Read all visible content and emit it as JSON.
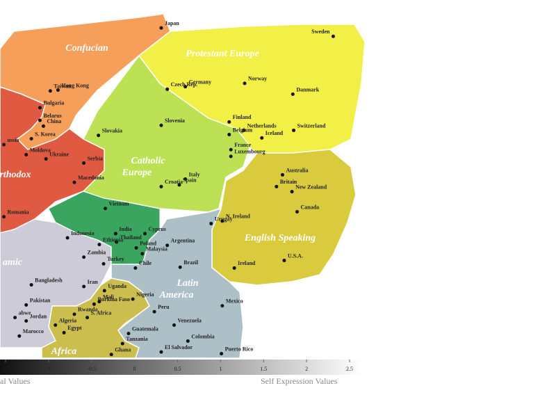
{
  "chart_data": {
    "type": "scatter",
    "xlim": [
      -1.5,
      2.5
    ],
    "ylim": [
      -2.2,
      2.0
    ],
    "xticks": [
      -1.5,
      -1,
      -0.5,
      0,
      0.5,
      1,
      1.5,
      2,
      2.5
    ],
    "xlabel_left": "al Values",
    "xlabel_right": "Self Expression Values",
    "point_color": "#111111",
    "regions": [
      {
        "name": "Confucian",
        "color": "#f59a52"
      },
      {
        "name": "Protestant Europe",
        "color": "#f2ef3e"
      },
      {
        "name": "Catholic Europe",
        "color": "#b9e04c"
      },
      {
        "name": "English Speaking",
        "color": "#d7c834"
      },
      {
        "name": "rthodox",
        "color": "#df5238"
      },
      {
        "name": "amic",
        "color": "#cbc9d5"
      },
      {
        "name": "Africa",
        "color": "#c9bb45"
      },
      {
        "name": "Latin America",
        "color": "#a9bdc5"
      }
    ],
    "labels": [
      "Japan",
      "Sweden",
      "Hong Kong",
      "Taiwan",
      "Norway",
      "Germany",
      "Czech Rep.",
      "Danmark",
      "Bulgaria",
      "Belarus",
      "China",
      "Slovenia",
      "Slovakia",
      "Finland",
      "Netherlands",
      "Switzerland",
      "Belgium",
      "Iceland",
      "S. Korea",
      "ussia",
      "France",
      "Luxembourg",
      "Moldova",
      "Ukraine",
      "Serbia",
      "Australia",
      "Italy",
      "Britain",
      "Croatia",
      "Spain",
      "New Zealand",
      "Macedonia",
      "Canada",
      "Vietnam",
      "Romania",
      "N. Ireland",
      "Urugay",
      "India",
      "Cyprus",
      "Indonesia",
      "Thailand",
      "Ethiopia",
      "Argentina",
      "Poland",
      "Zambia",
      "Malaysia",
      "Turkey",
      "Brazil",
      "Chile",
      "U.S.A.",
      "Ireland",
      "Bangladesh",
      "Iran",
      "Uganda",
      "Nigeria",
      "Mexico",
      "Pakistan",
      "Burkina Faso",
      "Mali",
      "Peru",
      "Rwanda",
      "S. Africa",
      "abwe",
      "Jordan",
      "Venezuela",
      "Algeria",
      "Egypt",
      "Guatemala",
      "Marocco",
      "Colombia",
      "Tanzania",
      "Ghana",
      "El Salvador",
      "Puerto Rico"
    ],
    "x": [
      0.31,
      2.31,
      -0.89,
      -0.98,
      1.28,
      0.59,
      0.38,
      1.84,
      -1.1,
      -1.1,
      -1.06,
      0.31,
      -0.42,
      1.1,
      1.27,
      1.85,
      1.1,
      1.48,
      -1.2,
      -1.52,
      1.12,
      1.12,
      -1.26,
      -1.03,
      -0.59,
      1.72,
      0.59,
      1.65,
      0.31,
      0.52,
      1.83,
      -0.7,
      1.89,
      -0.34,
      -1.52,
      1.02,
      0.89,
      -0.22,
      0.12,
      -0.78,
      -0.21,
      -0.41,
      0.38,
      0.02,
      -0.59,
      0.09,
      -0.36,
      0.53,
      0.01,
      1.74,
      1.16,
      -1.2,
      -0.59,
      -0.35,
      -0.02,
      1.02,
      -1.26,
      -0.47,
      -0.41,
      0.23,
      -0.7,
      -0.55,
      -1.39,
      -1.26,
      0.46,
      -0.92,
      -0.82,
      -0.07,
      -1.34,
      0.62,
      -0.14,
      -0.27,
      0.31,
      1.01
    ],
    "y": [
      1.75,
      1.65,
      1.01,
      1.0,
      1.09,
      1.05,
      1.02,
      0.96,
      0.8,
      0.65,
      0.58,
      0.59,
      0.47,
      0.63,
      0.53,
      0.53,
      0.48,
      0.44,
      0.43,
      0.36,
      0.3,
      0.22,
      0.24,
      0.19,
      0.14,
      0.0,
      -0.05,
      -0.14,
      -0.14,
      -0.12,
      -0.2,
      -0.09,
      -0.44,
      -0.4,
      -0.5,
      -0.55,
      -0.58,
      -0.7,
      -0.7,
      -0.75,
      -0.8,
      -0.83,
      -0.84,
      -0.87,
      -0.98,
      -0.94,
      -1.06,
      -1.1,
      -1.11,
      -1.02,
      -1.11,
      -1.31,
      -1.33,
      -1.38,
      -1.48,
      -1.56,
      -1.55,
      -1.54,
      -1.51,
      -1.63,
      -1.66,
      -1.7,
      -1.7,
      -1.74,
      -1.79,
      -1.79,
      -1.88,
      -1.89,
      -1.92,
      -1.98,
      -2.01,
      -2.14,
      -2.11,
      -2.13
    ]
  }
}
